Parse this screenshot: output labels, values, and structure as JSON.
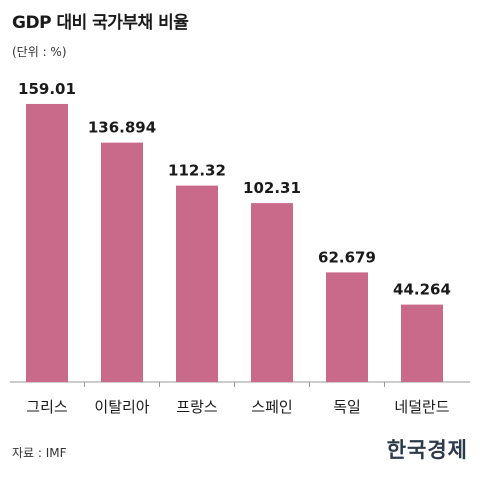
{
  "header": {
    "title": "GDP 대비 국가부채 비율",
    "unit": "(단위 : %)"
  },
  "footer": {
    "source": "자료 : IMF",
    "publisher": "한국경제"
  },
  "colors": {
    "bar": "#c96a8b",
    "axis": "#999999",
    "text": "#1a1a1a"
  },
  "chart_data": {
    "type": "bar",
    "title": "GDP 대비 국가부채 비율",
    "xlabel": "",
    "ylabel": "",
    "unit": "%",
    "categories": [
      "그리스",
      "이탈리아",
      "프랑스",
      "스페인",
      "독일",
      "네덜란드"
    ],
    "values": [
      159.01,
      136.894,
      112.32,
      102.31,
      62.679,
      44.264
    ],
    "value_labels": [
      "159.01",
      "136.894",
      "112.32",
      "102.31",
      "62.679",
      "44.264"
    ],
    "ylim": [
      0,
      175
    ],
    "grid": false,
    "legend": "none"
  }
}
